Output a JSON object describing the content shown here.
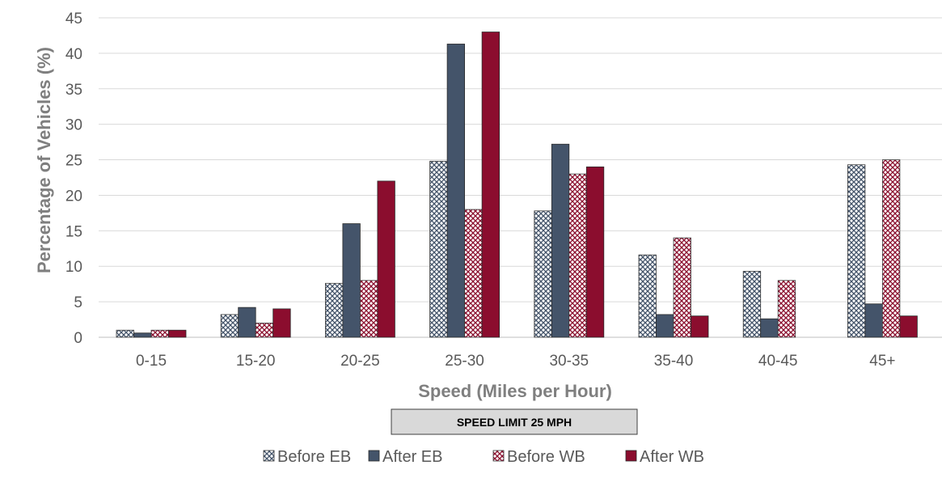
{
  "chart_data": {
    "type": "bar",
    "categories": [
      "0-15",
      "15-20",
      "20-25",
      "25-30",
      "30-35",
      "35-40",
      "40-45",
      "45+"
    ],
    "series": [
      {
        "name": "Before EB",
        "values": [
          1.0,
          3.2,
          7.6,
          24.8,
          17.8,
          11.6,
          9.3,
          24.3
        ],
        "color": "#44546a",
        "fill": "pattern-light"
      },
      {
        "name": "After EB",
        "values": [
          0.6,
          4.2,
          16.0,
          41.3,
          27.2,
          3.2,
          2.6,
          4.7
        ],
        "color": "#44546a",
        "fill": "solid"
      },
      {
        "name": "Before WB",
        "values": [
          1.0,
          2.0,
          8.0,
          18.0,
          23.0,
          14.0,
          8.0,
          25.0
        ],
        "color": "#8b0d2e",
        "fill": "pattern-red"
      },
      {
        "name": "After WB",
        "values": [
          1.0,
          4.0,
          22.0,
          43.0,
          24.0,
          3.0,
          0,
          3.0
        ],
        "color": "#8b0d2e",
        "fill": "solid"
      }
    ],
    "ylabel": "Percentage of Vehicles (%)",
    "xlabel": "Speed (Miles per Hour)",
    "ylim": [
      0,
      45
    ],
    "yticks": [
      0,
      5,
      10,
      15,
      20,
      25,
      30,
      35,
      40,
      45
    ],
    "grid": true,
    "legend": "bottom",
    "annotation": "SPEED LIMIT 25 MPH",
    "colors": {
      "grid": "#d9d9d9",
      "tick": "#595959",
      "axis_title": "#7f7f7f",
      "banner": "#d9d9d9"
    }
  }
}
